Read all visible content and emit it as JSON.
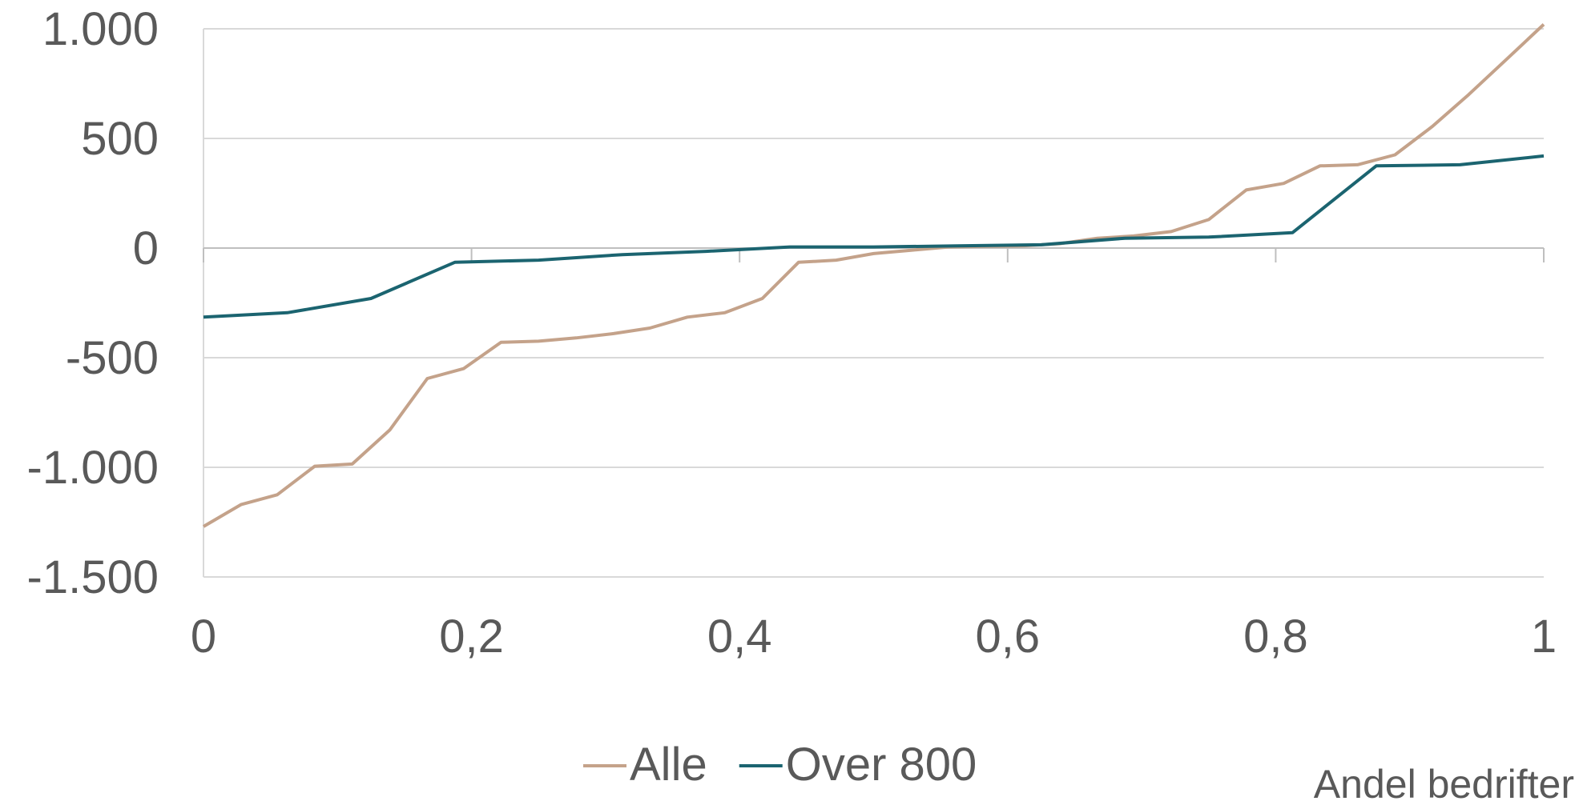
{
  "chart_data": {
    "type": "line",
    "title": "",
    "xlabel": "Andel bedrifter",
    "ylabel": "",
    "xlim": [
      0,
      1
    ],
    "ylim": [
      -1500,
      1000
    ],
    "x_ticks": [
      0,
      0.2,
      0.4,
      0.6,
      0.8,
      1
    ],
    "x_tick_labels": [
      "0",
      "0,2",
      "0,4",
      "0,6",
      "0,8",
      "1"
    ],
    "y_ticks": [
      1000,
      500,
      0,
      -500,
      -1000,
      -1500
    ],
    "y_tick_labels": [
      "1.000",
      "500",
      "0",
      "-500",
      "-1.000",
      "-1.500"
    ],
    "grid": "horizontal",
    "legend": "bottom",
    "series": [
      {
        "name": "Alle",
        "color": "#C4A28A",
        "x": [
          0,
          0.028,
          0.055,
          0.083,
          0.111,
          0.139,
          0.167,
          0.194,
          0.222,
          0.25,
          0.278,
          0.306,
          0.333,
          0.361,
          0.389,
          0.417,
          0.444,
          0.472,
          0.5,
          0.528,
          0.556,
          0.583,
          0.611,
          0.639,
          0.667,
          0.694,
          0.722,
          0.75,
          0.778,
          0.806,
          0.833,
          0.861,
          0.889,
          0.917,
          0.944,
          0.972,
          1
        ],
        "y": [
          -1270,
          -1170,
          -1125,
          -995,
          -985,
          -830,
          -595,
          -550,
          -430,
          -425,
          -410,
          -390,
          -365,
          -315,
          -295,
          -230,
          -65,
          -55,
          -25,
          -10,
          5,
          8,
          10,
          20,
          45,
          55,
          75,
          130,
          265,
          295,
          375,
          380,
          425,
          555,
          700,
          860,
          1020
        ]
      },
      {
        "name": "Over 800",
        "color": "#1B6470",
        "x": [
          0,
          0.0625,
          0.125,
          0.1875,
          0.25,
          0.3125,
          0.375,
          0.4375,
          0.5,
          0.5625,
          0.625,
          0.6875,
          0.75,
          0.8125,
          0.875,
          0.9375,
          1
        ],
        "y": [
          -315,
          -295,
          -230,
          -65,
          -55,
          -30,
          -15,
          5,
          5,
          10,
          15,
          45,
          50,
          70,
          375,
          380,
          420
        ]
      }
    ]
  }
}
